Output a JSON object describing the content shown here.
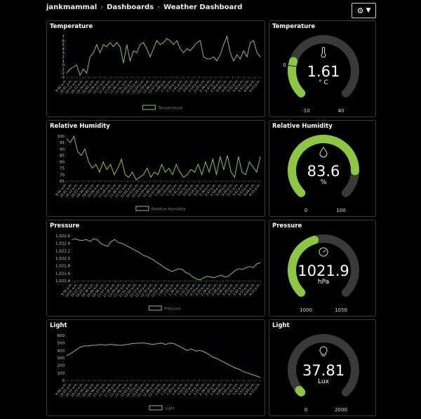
{
  "breadcrumb": [
    "jankmammal",
    "Dashboards",
    "Weather Dashboard"
  ],
  "settings_button": {
    "icon": "gear-icon",
    "caret": "chevron-down-icon"
  },
  "accent_color": "#8dc63f",
  "time_labels": [
    "9:50 a.m.",
    "10:01 a.m.",
    "10:12 a.m.",
    "10:23 a.m.",
    "10:34 a.m.",
    "10:45 a.m.",
    "10:56 a.m.",
    "11:07 a.m.",
    "11:18 a.m.",
    "11:29 a.m.",
    "11:40 a.m.",
    "11:51 a.m.",
    "12:02 p.m.",
    "12:13 p.m.",
    "12:24 p.m.",
    "12:35 p.m.",
    "12:46 p.m.",
    "12:57 p.m.",
    "1:08 p.m.",
    "1:19 p.m.",
    "1:30 p.m.",
    "1:41 p.m.",
    "1:52 p.m.",
    "2:03 p.m.",
    "2:14 p.m.",
    "2:25 p.m.",
    "2:36 p.m.",
    "2:47 p.m.",
    "2:58 p.m.",
    "3:09 p.m.",
    "3:20 p.m.",
    "3:31 p.m.",
    "3:42 p.m.",
    "3:53 p.m.",
    "4:04 p.m.",
    "4:15 p.m."
  ],
  "chart_data": [
    {
      "type": "line",
      "title": "Temperature",
      "legend": "Temperature",
      "legend_position": "bottom",
      "ylim": [
        -3,
        7
      ],
      "yticks": [
        -3,
        -2,
        -1,
        0,
        1,
        2,
        3,
        4,
        5,
        6,
        7
      ],
      "ytick_labels": [
        "-3",
        "-2",
        "-1",
        "0",
        "1",
        "2",
        "3",
        "4",
        "5",
        "6",
        "7"
      ],
      "values": [
        -2,
        -1,
        -0.5,
        0,
        -2.5,
        -1,
        -2,
        2,
        3,
        5,
        3,
        5,
        4.5,
        5.5,
        4.5,
        5.5,
        4.5,
        0.5,
        5,
        1,
        3.5,
        3,
        5,
        5.5,
        4,
        2,
        4,
        6,
        5,
        5.5,
        6.5,
        6,
        5,
        6,
        4,
        3,
        4,
        3.5,
        4.5,
        5.5,
        6,
        2,
        1.5,
        1.5,
        2,
        1,
        2.5,
        5,
        7,
        3,
        1,
        2.5,
        1.5,
        3.5,
        2,
        5.5,
        6,
        3,
        2
      ]
    },
    {
      "type": "line",
      "title": "Relative Humidity",
      "legend": "Relative Humidity",
      "legend_position": "bottom",
      "ylim": [
        65,
        100
      ],
      "yticks": [
        65,
        70,
        75,
        80,
        85,
        90,
        95,
        100
      ],
      "ytick_labels": [
        "65",
        "70",
        "75",
        "80",
        "85",
        "90",
        "95",
        "100"
      ],
      "values": [
        98,
        95,
        100,
        88,
        85,
        90,
        80,
        75,
        78,
        72,
        80,
        74,
        78,
        70,
        75,
        82,
        70,
        68,
        72,
        66,
        68,
        70,
        75,
        68,
        72,
        70,
        78,
        72,
        75,
        70,
        78,
        72,
        68,
        70,
        74,
        72,
        78,
        70,
        80,
        72,
        82,
        70,
        84,
        74,
        85,
        72,
        68,
        84,
        72,
        70,
        80,
        76,
        72,
        84
      ]
    },
    {
      "type": "line",
      "title": "Pressure",
      "legend": "Pressure",
      "legend_position": "bottom",
      "ylim": [
        1021.4,
        1022.6
      ],
      "yticks": [
        1021.4,
        1021.6,
        1021.8,
        1022.0,
        1022.2,
        1022.4,
        1022.6
      ],
      "ytick_labels": [
        "1,021.4",
        "1,021.6",
        "1,021.8",
        "1,022.0",
        "1,022.2",
        "1,022.4",
        "1,022.6"
      ],
      "values": [
        1022.5,
        1022.52,
        1022.48,
        1022.48,
        1022.5,
        1022.45,
        1022.52,
        1022.5,
        1022.4,
        1022.35,
        1022.32,
        1022.45,
        1022.5,
        1022.42,
        1022.4,
        1022.35,
        1022.3,
        1022.25,
        1022.2,
        1022.15,
        1022.08,
        1022.05,
        1022.0,
        1021.95,
        1021.88,
        1021.82,
        1021.75,
        1021.7,
        1021.65,
        1021.68,
        1021.72,
        1021.7,
        1021.62,
        1021.58,
        1021.5,
        1021.45,
        1021.42,
        1021.48,
        1021.52,
        1021.5,
        1021.48,
        1021.52,
        1021.55,
        1021.5,
        1021.52,
        1021.6,
        1021.68,
        1021.72,
        1021.7,
        1021.75,
        1021.78,
        1021.75,
        1021.85,
        1021.88
      ]
    },
    {
      "type": "line",
      "title": "Light",
      "legend": "Light",
      "legend_position": "bottom",
      "ylim": [
        0,
        600
      ],
      "yticks": [
        0,
        100,
        200,
        300,
        400,
        500,
        600
      ],
      "ytick_labels": [
        "0",
        "100",
        "200",
        "300",
        "400",
        "500",
        "600"
      ],
      "values": [
        330,
        360,
        400,
        440,
        460,
        460,
        470,
        470,
        480,
        470,
        480,
        475,
        470,
        470,
        480,
        490,
        495,
        500,
        500,
        490,
        480,
        490,
        500,
        480,
        500,
        490,
        460,
        430,
        400,
        420,
        390,
        400,
        380,
        350,
        310,
        290,
        260,
        230,
        200,
        170,
        150,
        120,
        100,
        80,
        60,
        40
      ]
    }
  ],
  "gauges": [
    {
      "title": "Temperature",
      "value": 1.61,
      "value_text": "1.61",
      "unit": "° C",
      "min": -10,
      "max": 40,
      "min_label": "-10",
      "max_label": "40",
      "marker_label": "0",
      "icon": "thermometer-icon"
    },
    {
      "title": "Relative Humidity",
      "value": 83.6,
      "value_text": "83.6",
      "unit": "%",
      "min": 0,
      "max": 100,
      "min_label": "0",
      "max_label": "100",
      "icon": "humidity-icon"
    },
    {
      "title": "Pressure",
      "value": 1021.9,
      "value_text": "1021.9",
      "unit": "hPa",
      "min": 1000,
      "max": 1050,
      "min_label": "1000",
      "max_label": "1050",
      "icon": "barometer-icon"
    },
    {
      "title": "Light",
      "value": 37.81,
      "value_text": "37.81",
      "unit": "Lux",
      "min": 0,
      "max": 2000,
      "min_label": "0",
      "max_label": "2000",
      "icon": "lightbulb-icon"
    }
  ]
}
